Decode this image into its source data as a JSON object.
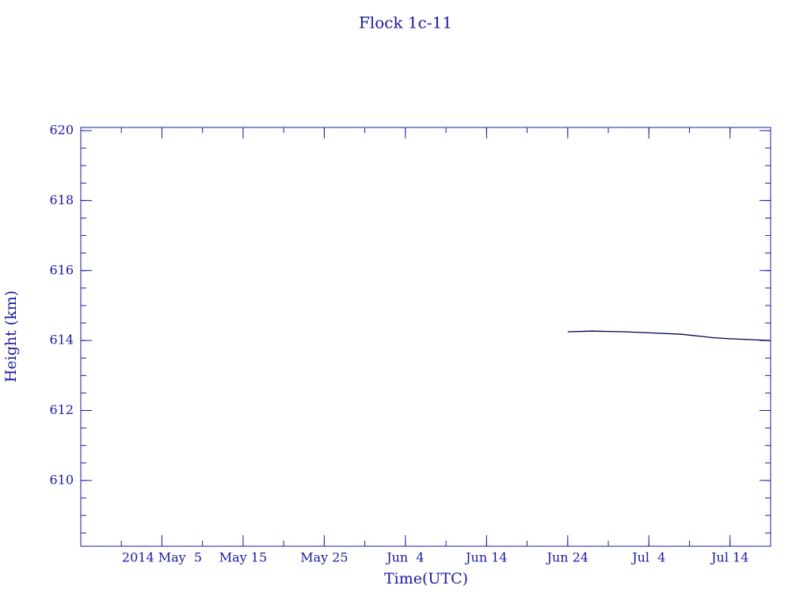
{
  "chart_data": {
    "type": "line",
    "title": "Flock 1c-11",
    "x_label": "Time(UTC)",
    "y_label": "Height (km)",
    "x": [
      "2014-06-24",
      "2014-06-27",
      "2014-07-01",
      "2014-07-04",
      "2014-07-08",
      "2014-07-12",
      "2014-07-14",
      "2014-07-19"
    ],
    "series": [
      {
        "name": "Flock 1c-11",
        "color": "#000050",
        "values": [
          614.25,
          614.27,
          614.25,
          614.22,
          614.18,
          614.08,
          614.05,
          614.0
        ]
      }
    ],
    "xlim": [
      "2014-04-25",
      "2014-07-19"
    ],
    "xticks": [
      {
        "value": "2014-05-05",
        "label": "2014 May  5"
      },
      {
        "value": "2014-05-15",
        "label": "May 15"
      },
      {
        "value": "2014-05-25",
        "label": "May 25"
      },
      {
        "value": "2014-06-04",
        "label": "Jun  4"
      },
      {
        "value": "2014-06-14",
        "label": "Jun 14"
      },
      {
        "value": "2014-06-24",
        "label": "Jun 24"
      },
      {
        "value": "2014-07-04",
        "label": "Jul  4"
      },
      {
        "value": "2014-07-14",
        "label": "Jul 14"
      }
    ],
    "ylim": [
      608.12,
      620.09
    ],
    "yticks": [
      610,
      612,
      614,
      616,
      618,
      620
    ]
  }
}
